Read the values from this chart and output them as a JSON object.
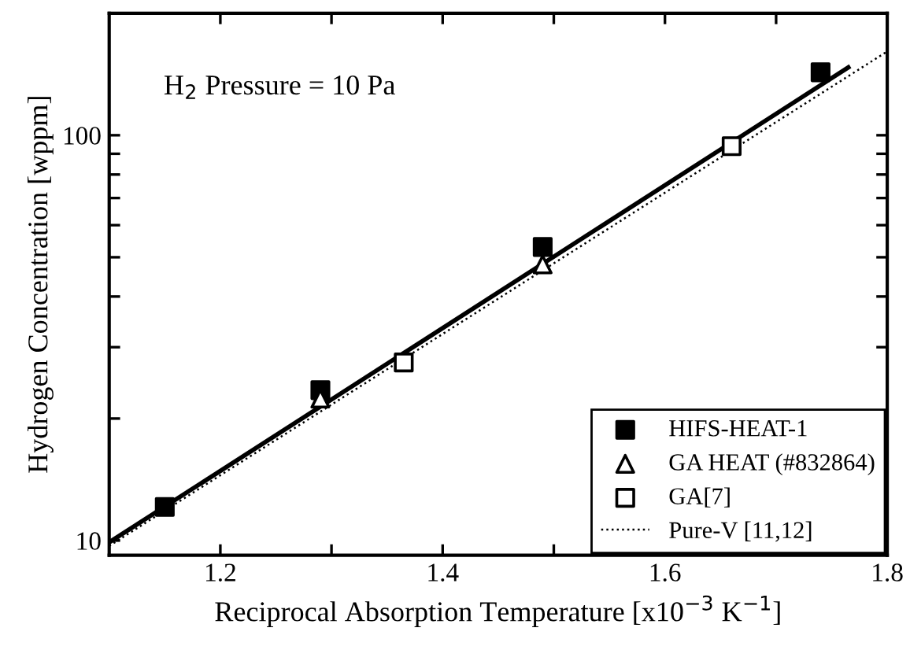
{
  "chart_data": {
    "type": "scatter",
    "xlabel": "Reciprocal Absorption Temperature [x10$^{−3}$ K$^{−1}$]",
    "ylabel": "Hydrogen Concentration [wppm]",
    "annotations": [
      "H$_{2}$ Pressure = 10 Pa"
    ],
    "series": [
      {
        "name": "HIFS-HEAT-1",
        "marker": "square",
        "color": "#000000",
        "x": [
          1.15,
          1.29,
          1.49,
          1.74
        ],
        "values": [
          12.1,
          23.5,
          53,
          143
        ]
      },
      {
        "name": "GA HEAT (#832864)",
        "marker": "triangle",
        "color": "#ffffff",
        "x": [
          1.29,
          1.49
        ],
        "values": [
          22.4,
          48
        ]
      },
      {
        "name": "GA[7]",
        "marker": "square",
        "color": "#ffffff",
        "x": [
          1.365,
          1.66
        ],
        "values": [
          27.5,
          94
        ]
      },
      {
        "type": "line",
        "line_style": "solid",
        "color": "#000000",
        "x": [
          1.1,
          1.765
        ],
        "values": [
          9.9,
          147
        ]
      },
      {
        "name": "Pure-V [11,12]",
        "type": "line",
        "line_style": "dotted",
        "color": "#000000",
        "x": [
          1.1,
          1.8
        ],
        "values": [
          9.7,
          161
        ]
      }
    ],
    "log": "y",
    "xlim": [
      1.1,
      1.8
    ],
    "ylim": [
      9.2,
      200
    ],
    "xticks": [
      {
        "value": 1.2,
        "label": "1.2"
      },
      {
        "value": 1.3,
        "label": null
      },
      {
        "value": 1.4,
        "label": "1.4"
      },
      {
        "value": 1.5,
        "label": null
      },
      {
        "value": 1.6,
        "label": "1.6"
      },
      {
        "value": 1.7,
        "label": null
      },
      {
        "value": 1.8,
        "label": "1.8"
      }
    ],
    "yticks": [
      10,
      {
        "value": 20,
        "label": null
      },
      {
        "value": 30,
        "label": null
      },
      {
        "value": 40,
        "label": null
      },
      {
        "value": 50,
        "label": null
      },
      {
        "value": 60,
        "label": null
      },
      {
        "value": 70,
        "label": null
      },
      {
        "value": 80,
        "label": null
      },
      {
        "value": 90,
        "label": null
      },
      100
    ],
    "grid": false,
    "legend": "bottom right"
  }
}
